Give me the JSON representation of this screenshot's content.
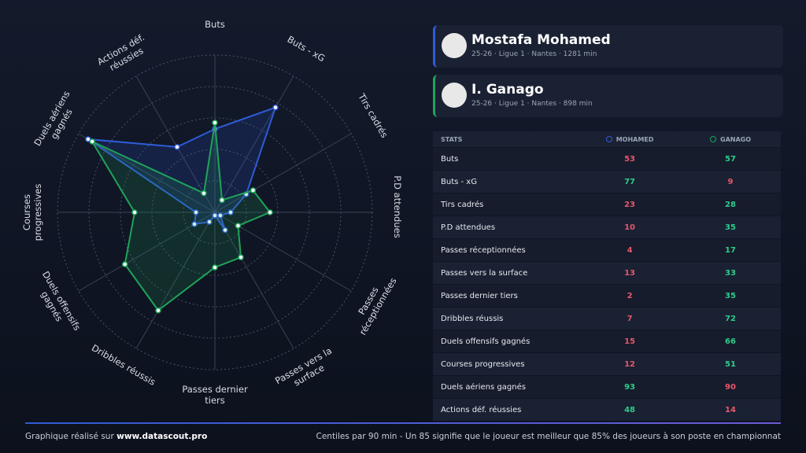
{
  "chart_data": {
    "type": "radar",
    "categories": [
      "Buts",
      "Buts - xG",
      "Tirs cadrés",
      "P.D attendues",
      "Passes réceptionnées",
      "Passes vers la surface",
      "Passes dernier tiers",
      "Dribbles réussis",
      "Duels offensifs gagnés",
      "Courses progressives",
      "Duels aériens gagnés",
      "Actions déf. réussies"
    ],
    "series": [
      {
        "name": "MOHAMED",
        "color": "#2f5bd6",
        "values": [
          53,
          77,
          23,
          10,
          4,
          13,
          2,
          7,
          15,
          12,
          93,
          48
        ]
      },
      {
        "name": "GANAGO",
        "color": "#1fa35a",
        "values": [
          57,
          9,
          28,
          35,
          17,
          33,
          35,
          72,
          66,
          51,
          90,
          14
        ]
      }
    ],
    "ylim": [
      0,
      100
    ],
    "yticks": [
      20,
      40,
      60,
      80,
      100
    ],
    "grid": true
  },
  "players": [
    {
      "name": "Mostafa Mohamed",
      "info": "25-26 · Ligue 1 · Nantes · 1281 min"
    },
    {
      "name": "I. Ganago",
      "info": "25-26 · Ligue 1 · Nantes · 898 min"
    }
  ],
  "table": {
    "header": "STATS"
  },
  "footer": {
    "prefix": "Graphique réalisé sur",
    "site": "www.datascout.pro",
    "note": "Centiles par 90 min - Un 85 signifie que le joueur est meilleur que 85% des joueurs à son poste en championnat"
  }
}
